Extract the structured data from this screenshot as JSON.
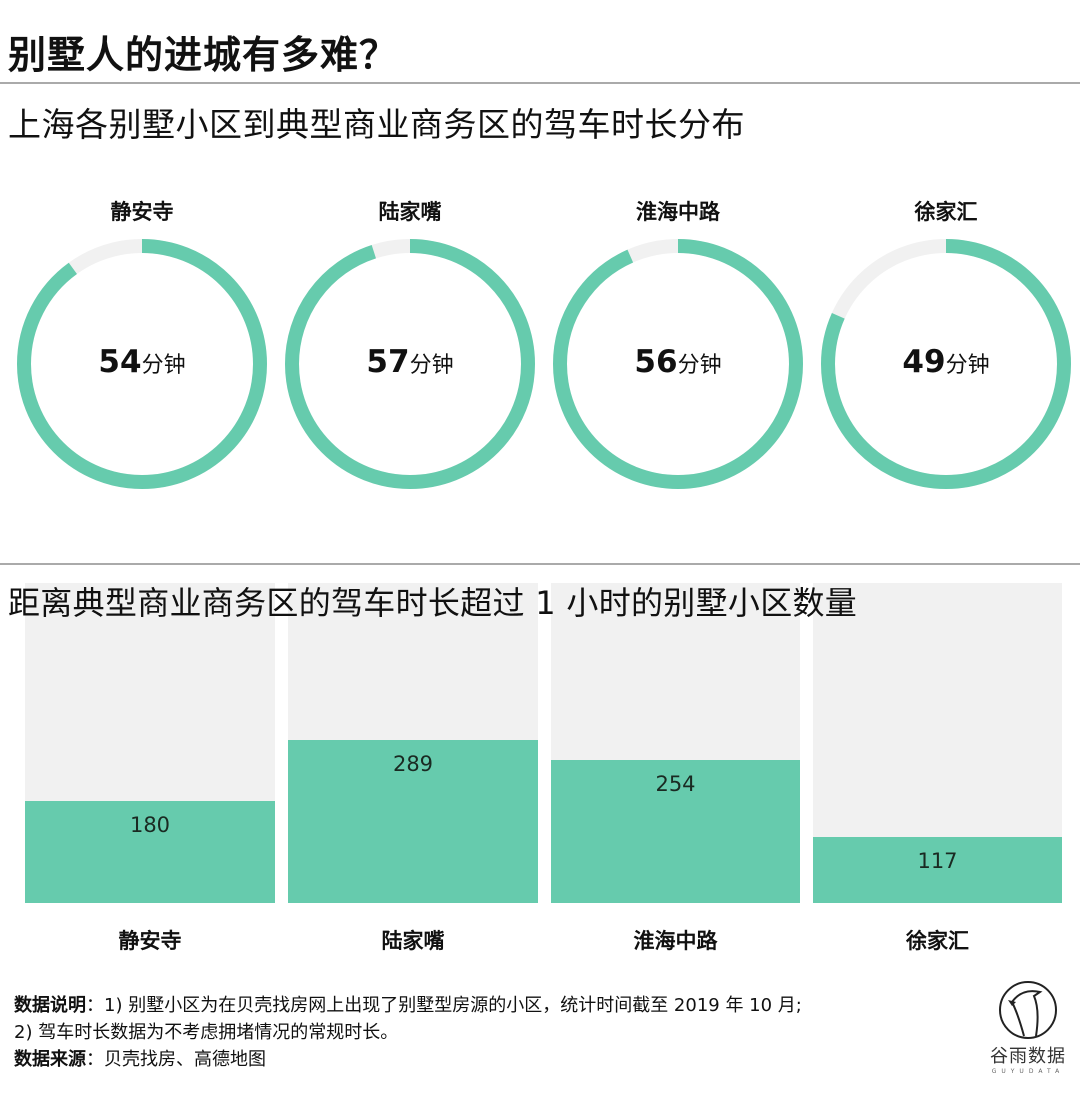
{
  "header": {
    "title": "别墅人的进城有多难？",
    "subtitle": "上海各别墅小区到典型商业商务区的驾车时长分布"
  },
  "colors": {
    "accent": "#66cbad",
    "track": "#f1f1f1",
    "rule": "#aaaaaa",
    "text": "#111111"
  },
  "rings": [
    {
      "label": "静安寺",
      "value": "54",
      "unit": "分钟"
    },
    {
      "label": "陆家嘴",
      "value": "57",
      "unit": "分钟"
    },
    {
      "label": "淮海中路",
      "value": "56",
      "unit": "分钟"
    },
    {
      "label": "徐家汇",
      "value": "49",
      "unit": "分钟"
    }
  ],
  "bars": {
    "title": "距离典型商业商务区的驾车时长超过 1 小时的别墅小区数量",
    "items": [
      {
        "label": "静安寺",
        "value": "180"
      },
      {
        "label": "陆家嘴",
        "value": "289"
      },
      {
        "label": "淮海中路",
        "value": "254"
      },
      {
        "label": "徐家汇",
        "value": "117"
      }
    ]
  },
  "footer": {
    "note_label": "数据说明",
    "note_line1": "：1) 别墅小区为在贝壳找房网上出现了别墅型房源的小区，统计时间截至 2019 年 10 月;",
    "note_line2": "2) 驾车时长数据为不考虑拥堵情况的常规时长。",
    "source_label": "数据来源",
    "source_text": "：贝壳找房、高德地图"
  },
  "logo": {
    "name": "谷雨数据",
    "sub": "GUYUDATA"
  },
  "chart_data": [
    {
      "type": "pie",
      "title": "上海各别墅小区到典型商业商务区的驾车时长分布",
      "subtype": "progress-ring",
      "unit": "分钟",
      "max": 60,
      "categories": [
        "静安寺",
        "陆家嘴",
        "淮海中路",
        "徐家汇"
      ],
      "values": [
        54,
        57,
        56,
        49
      ]
    },
    {
      "type": "bar",
      "title": "距离典型商业商务区的驾车时长超过 1 小时的别墅小区数量",
      "categories": [
        "静安寺",
        "陆家嘴",
        "淮海中路",
        "徐家汇"
      ],
      "values": [
        180,
        289,
        254,
        117
      ],
      "xlabel": "",
      "ylabel": "",
      "ylim": [
        0,
        567
      ],
      "grid": false,
      "data_labels": true
    }
  ]
}
